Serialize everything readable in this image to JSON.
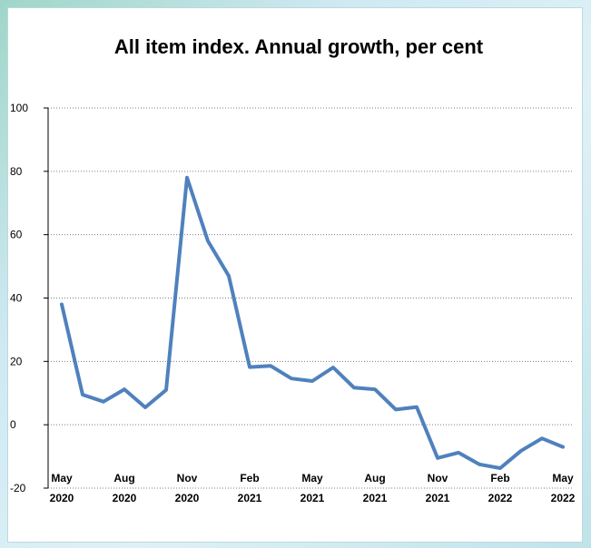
{
  "chart_data": {
    "type": "line",
    "title": "All item index. Annual growth, per cent",
    "xlabel": "",
    "ylabel": "",
    "ylim": [
      -20,
      100
    ],
    "yticks": [
      -20,
      0,
      20,
      40,
      60,
      80,
      100
    ],
    "xtick_labels": [
      {
        "month": "May",
        "year": "2020",
        "index": 0
      },
      {
        "month": "Aug",
        "year": "2020",
        "index": 3
      },
      {
        "month": "Nov",
        "year": "2020",
        "index": 6
      },
      {
        "month": "Feb",
        "year": "2021",
        "index": 9
      },
      {
        "month": "May",
        "year": "2021",
        "index": 12
      },
      {
        "month": "Aug",
        "year": "2021",
        "index": 15
      },
      {
        "month": "Nov",
        "year": "2021",
        "index": 18
      },
      {
        "month": "Feb",
        "year": "2022",
        "index": 21
      },
      {
        "month": "May",
        "year": "2022",
        "index": 24
      }
    ],
    "grid": true,
    "line_color": "#4f81bd",
    "series": [
      {
        "values": [
          38,
          9.5,
          7.3,
          11.2,
          5.5,
          11,
          78,
          58,
          47,
          18.2,
          18.6,
          14.6,
          13.8,
          18.1,
          11.7,
          11.2,
          4.8,
          5.6,
          -10.5,
          -8.8,
          -12.5,
          -13.7,
          -8.2,
          -4.3,
          -7
        ]
      }
    ]
  }
}
